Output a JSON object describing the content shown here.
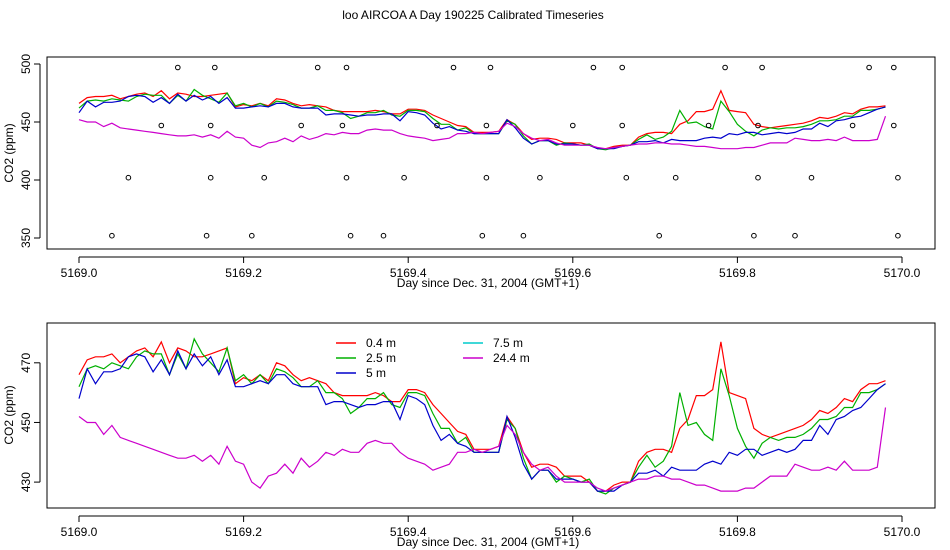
{
  "figure": {
    "title": "loo AIRCOA A  Day 190225  Calibrated Timeseries"
  },
  "chart_data": [
    {
      "type": "scatter",
      "xlabel": "Day since Dec. 31, 2004 (GMT+1)",
      "ylabel": "CO2 (ppm)",
      "xlim": [
        5169.0,
        5170.0
      ],
      "ylim": [
        350,
        500
      ],
      "xticks": [
        5169.0,
        5169.2,
        5169.4,
        5169.6,
        5169.8,
        5170.0
      ],
      "xtick_labels": [
        "5169.0",
        "5169.2",
        "5169.4",
        "5169.6",
        "5169.8",
        "5170.0"
      ],
      "yticks": [
        350,
        400,
        450,
        500
      ],
      "ytick_labels": [
        "350",
        "400",
        "450",
        "500"
      ],
      "calibration_points": {
        "x": [
          5169.04,
          5169.06,
          5169.1,
          5169.12,
          5169.155,
          5169.16,
          5169.16,
          5169.165,
          5169.21,
          5169.225,
          5169.27,
          5169.29,
          5169.32,
          5169.325,
          5169.325,
          5169.33,
          5169.37,
          5169.395,
          5169.435,
          5169.455,
          5169.49,
          5169.495,
          5169.495,
          5169.5,
          5169.54,
          5169.56,
          5169.6,
          5169.625,
          5169.66,
          5169.66,
          5169.665,
          5169.705,
          5169.725,
          5169.765,
          5169.785,
          5169.82,
          5169.825,
          5169.825,
          5169.83,
          5169.87,
          5169.89,
          5169.94,
          5169.96,
          5169.99,
          5169.99,
          5169.995,
          5169.995
        ],
        "y": [
          352,
          402,
          447,
          497,
          352,
          402,
          447,
          497,
          352,
          402,
          447,
          497,
          447,
          497,
          402,
          352,
          352,
          402,
          447,
          497,
          352,
          402,
          447,
          497,
          352,
          402,
          447,
          497,
          447,
          497,
          402,
          352,
          402,
          447,
          497,
          352,
          402,
          447,
          497,
          352,
          402,
          447,
          497,
          497,
          447,
          402,
          352
        ]
      },
      "series": [
        {
          "name": "0.4 m",
          "color": "#ff0000",
          "x": [
            5169.0,
            5169.01,
            5169.02,
            5169.03,
            5169.04,
            5169.05,
            5169.06,
            5169.07,
            5169.08,
            5169.09,
            5169.1,
            5169.11,
            5169.12,
            5169.13,
            5169.14,
            5169.15,
            5169.16,
            5169.17,
            5169.18,
            5169.19,
            5169.2,
            5169.21,
            5169.22,
            5169.23,
            5169.24,
            5169.25,
            5169.26,
            5169.27,
            5169.28,
            5169.29,
            5169.3,
            5169.31,
            5169.32,
            5169.33,
            5169.34,
            5169.35,
            5169.36,
            5169.37,
            5169.38,
            5169.39,
            5169.4,
            5169.41,
            5169.42,
            5169.43,
            5169.44,
            5169.45,
            5169.46,
            5169.47,
            5169.48,
            5169.49,
            5169.5,
            5169.51,
            5169.52,
            5169.53,
            5169.54,
            5169.55,
            5169.56,
            5169.57,
            5169.58,
            5169.59,
            5169.6,
            5169.61,
            5169.62,
            5169.63,
            5169.64,
            5169.65,
            5169.66,
            5169.67,
            5169.68,
            5169.69,
            5169.7,
            5169.71,
            5169.72,
            5169.73,
            5169.74,
            5169.75,
            5169.76,
            5169.77,
            5169.78,
            5169.79,
            5169.8,
            5169.81,
            5169.82,
            5169.83,
            5169.84,
            5169.85,
            5169.86,
            5169.87,
            5169.88,
            5169.89,
            5169.9,
            5169.91,
            5169.92,
            5169.93,
            5169.94,
            5169.95,
            5169.96,
            5169.97,
            5169.98
          ],
          "y": [
            466,
            471,
            472,
            472,
            473,
            470,
            472,
            474,
            475,
            472,
            477,
            470,
            475,
            474,
            472,
            472,
            473,
            474,
            475,
            463,
            465,
            464,
            466,
            464,
            470,
            469,
            466,
            464,
            465,
            464,
            463,
            460,
            459,
            459,
            459,
            459,
            460,
            459,
            457,
            457,
            461,
            461,
            460,
            456,
            453,
            450,
            447,
            446,
            441,
            441,
            441,
            442,
            452,
            448,
            440,
            435,
            436,
            436,
            435,
            432,
            432,
            432,
            430,
            427,
            427,
            429,
            430,
            430,
            437,
            440,
            441,
            441,
            440,
            448,
            451,
            459,
            459,
            461,
            477,
            460,
            459,
            458,
            448,
            446,
            445,
            446,
            447,
            448,
            449,
            451,
            454,
            453,
            455,
            458,
            457,
            461,
            463,
            463,
            464
          ]
        },
        {
          "name": "2.5 m",
          "color": "#00b000",
          "x": [
            5169.0,
            5169.01,
            5169.02,
            5169.03,
            5169.04,
            5169.05,
            5169.06,
            5169.07,
            5169.08,
            5169.09,
            5169.1,
            5169.11,
            5169.12,
            5169.13,
            5169.14,
            5169.15,
            5169.16,
            5169.17,
            5169.18,
            5169.19,
            5169.2,
            5169.21,
            5169.22,
            5169.23,
            5169.24,
            5169.25,
            5169.26,
            5169.27,
            5169.28,
            5169.29,
            5169.3,
            5169.31,
            5169.32,
            5169.33,
            5169.34,
            5169.35,
            5169.36,
            5169.37,
            5169.38,
            5169.39,
            5169.4,
            5169.41,
            5169.42,
            5169.43,
            5169.44,
            5169.45,
            5169.46,
            5169.47,
            5169.48,
            5169.49,
            5169.5,
            5169.51,
            5169.52,
            5169.53,
            5169.54,
            5169.55,
            5169.56,
            5169.57,
            5169.58,
            5169.59,
            5169.6,
            5169.61,
            5169.62,
            5169.63,
            5169.64,
            5169.65,
            5169.66,
            5169.67,
            5169.68,
            5169.69,
            5169.7,
            5169.71,
            5169.72,
            5169.73,
            5169.74,
            5169.75,
            5169.76,
            5169.77,
            5169.78,
            5169.79,
            5169.8,
            5169.81,
            5169.82,
            5169.83,
            5169.84,
            5169.85,
            5169.86,
            5169.87,
            5169.88,
            5169.89,
            5169.9,
            5169.91,
            5169.92,
            5169.93,
            5169.94,
            5169.95,
            5169.96,
            5169.97,
            5169.98
          ],
          "y": [
            462,
            468,
            469,
            468,
            470,
            469,
            468,
            472,
            474,
            473,
            473,
            466,
            473,
            468,
            478,
            473,
            470,
            467,
            475,
            464,
            466,
            463,
            466,
            463,
            468,
            467,
            465,
            462,
            462,
            464,
            460,
            460,
            458,
            453,
            455,
            458,
            458,
            460,
            456,
            455,
            460,
            460,
            459,
            453,
            448,
            448,
            443,
            445,
            440,
            440,
            440,
            440,
            451,
            448,
            438,
            431,
            434,
            434,
            430,
            432,
            431,
            430,
            431,
            427,
            426,
            428,
            429,
            430,
            435,
            439,
            435,
            437,
            442,
            460,
            449,
            450,
            446,
            444,
            468,
            459,
            448,
            442,
            438,
            443,
            445,
            444,
            445,
            445,
            446,
            448,
            451,
            451,
            452,
            455,
            455,
            460,
            460,
            461,
            463
          ]
        },
        {
          "name": "5 m",
          "color": "#0000cc",
          "x": [
            5169.0,
            5169.01,
            5169.02,
            5169.03,
            5169.04,
            5169.05,
            5169.06,
            5169.07,
            5169.08,
            5169.09,
            5169.1,
            5169.11,
            5169.12,
            5169.13,
            5169.14,
            5169.15,
            5169.16,
            5169.17,
            5169.18,
            5169.19,
            5169.2,
            5169.21,
            5169.22,
            5169.23,
            5169.24,
            5169.25,
            5169.26,
            5169.27,
            5169.28,
            5169.29,
            5169.3,
            5169.31,
            5169.32,
            5169.33,
            5169.34,
            5169.35,
            5169.36,
            5169.37,
            5169.38,
            5169.39,
            5169.4,
            5169.41,
            5169.42,
            5169.43,
            5169.44,
            5169.45,
            5169.46,
            5169.47,
            5169.48,
            5169.49,
            5169.5,
            5169.51,
            5169.52,
            5169.53,
            5169.54,
            5169.55,
            5169.56,
            5169.57,
            5169.58,
            5169.59,
            5169.6,
            5169.61,
            5169.62,
            5169.63,
            5169.64,
            5169.65,
            5169.66,
            5169.67,
            5169.68,
            5169.69,
            5169.7,
            5169.71,
            5169.72,
            5169.73,
            5169.74,
            5169.75,
            5169.76,
            5169.77,
            5169.78,
            5169.79,
            5169.8,
            5169.81,
            5169.82,
            5169.83,
            5169.84,
            5169.85,
            5169.86,
            5169.87,
            5169.88,
            5169.89,
            5169.9,
            5169.91,
            5169.92,
            5169.93,
            5169.94,
            5169.95,
            5169.96,
            5169.97,
            5169.98
          ],
          "y": [
            458,
            468,
            463,
            467,
            467,
            468,
            472,
            473,
            472,
            467,
            471,
            466,
            474,
            468,
            473,
            469,
            472,
            466,
            471,
            462,
            462,
            463,
            464,
            463,
            466,
            466,
            463,
            462,
            462,
            462,
            456,
            457,
            457,
            456,
            455,
            456,
            456,
            457,
            457,
            451,
            459,
            458,
            456,
            449,
            444,
            446,
            443,
            442,
            440,
            440,
            440,
            440,
            452,
            445,
            436,
            431,
            434,
            434,
            431,
            431,
            431,
            430,
            430,
            427,
            427,
            427,
            429,
            430,
            433,
            433,
            434,
            432,
            435,
            434,
            434,
            434,
            436,
            437,
            436,
            440,
            439,
            441,
            441,
            439,
            440,
            441,
            440,
            441,
            444,
            444,
            449,
            446,
            451,
            452,
            454,
            455,
            458,
            461,
            463
          ]
        },
        {
          "name": "7.5 m",
          "color": "#00cccc",
          "x": [],
          "y": []
        },
        {
          "name": "24.4 m",
          "color": "#cc00cc",
          "x": [
            5169.0,
            5169.01,
            5169.02,
            5169.03,
            5169.04,
            5169.05,
            5169.06,
            5169.07,
            5169.08,
            5169.09,
            5169.1,
            5169.11,
            5169.12,
            5169.13,
            5169.14,
            5169.15,
            5169.16,
            5169.17,
            5169.18,
            5169.19,
            5169.2,
            5169.21,
            5169.22,
            5169.23,
            5169.24,
            5169.25,
            5169.26,
            5169.27,
            5169.28,
            5169.29,
            5169.3,
            5169.31,
            5169.32,
            5169.33,
            5169.34,
            5169.35,
            5169.36,
            5169.37,
            5169.38,
            5169.39,
            5169.4,
            5169.41,
            5169.42,
            5169.43,
            5169.44,
            5169.45,
            5169.46,
            5169.47,
            5169.48,
            5169.49,
            5169.5,
            5169.51,
            5169.52,
            5169.53,
            5169.54,
            5169.55,
            5169.56,
            5169.57,
            5169.58,
            5169.59,
            5169.6,
            5169.61,
            5169.62,
            5169.63,
            5169.64,
            5169.65,
            5169.66,
            5169.67,
            5169.68,
            5169.69,
            5169.7,
            5169.71,
            5169.72,
            5169.73,
            5169.74,
            5169.75,
            5169.76,
            5169.77,
            5169.78,
            5169.79,
            5169.8,
            5169.81,
            5169.82,
            5169.83,
            5169.84,
            5169.85,
            5169.86,
            5169.87,
            5169.88,
            5169.89,
            5169.9,
            5169.91,
            5169.92,
            5169.93,
            5169.94,
            5169.95,
            5169.96,
            5169.97,
            5169.98
          ],
          "y": [
            452,
            450,
            450,
            446,
            449,
            445,
            444,
            443,
            442,
            441,
            440,
            439,
            438,
            438,
            439,
            437,
            439,
            436,
            442,
            437,
            436,
            430,
            428,
            432,
            433,
            436,
            433,
            438,
            435,
            437,
            440,
            439,
            441,
            440,
            440,
            443,
            444,
            443,
            443,
            440,
            438,
            437,
            436,
            434,
            435,
            436,
            440,
            440,
            441,
            440,
            441,
            442,
            449,
            446,
            440,
            436,
            434,
            435,
            432,
            430,
            430,
            430,
            430,
            428,
            427,
            428,
            429,
            430,
            431,
            431,
            432,
            432,
            431,
            431,
            430,
            429,
            429,
            428,
            427,
            427,
            427,
            428,
            428,
            430,
            432,
            432,
            432,
            436,
            435,
            434,
            434,
            435,
            434,
            437,
            434,
            434,
            434,
            435,
            455
          ]
        }
      ]
    },
    {
      "type": "line",
      "xlabel": "Day since Dec. 31, 2004 (GMT+1)",
      "ylabel": "CO2 (ppm)",
      "xlim": [
        5169.0,
        5170.0
      ],
      "ylim": [
        424,
        481
      ],
      "xticks": [
        5169.0,
        5169.2,
        5169.4,
        5169.6,
        5169.8,
        5170.0
      ],
      "xtick_labels": [
        "5169.0",
        "5169.2",
        "5169.4",
        "5169.6",
        "5169.8",
        "5170.0"
      ],
      "yticks": [
        430,
        450,
        470
      ],
      "ytick_labels": [
        "430",
        "450",
        "470"
      ],
      "legend": {
        "position": "top-left",
        "columns": 2
      },
      "series": [
        {
          "name": "0.4 m",
          "color": "#ff0000"
        },
        {
          "name": "2.5 m",
          "color": "#00b000"
        },
        {
          "name": "5 m",
          "color": "#0000cc"
        },
        {
          "name": "7.5 m",
          "color": "#00cccc"
        },
        {
          "name": "24.4 m",
          "color": "#cc00cc"
        }
      ]
    }
  ]
}
